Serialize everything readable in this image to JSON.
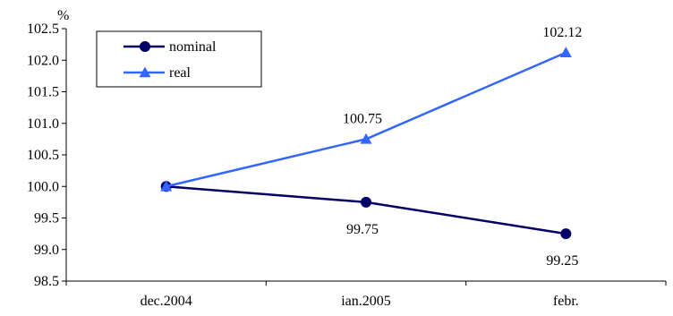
{
  "chart_data": {
    "type": "line",
    "unit_label": "%",
    "categories": [
      "dec.2004",
      "ian.2005",
      "febr."
    ],
    "ylim": [
      98.5,
      102.5
    ],
    "ytick_step": 0.5,
    "ytick_labels": [
      "98.5",
      "99.0",
      "99.5",
      "100.0",
      "100.5",
      "101.0",
      "101.5",
      "102.0",
      "102.5"
    ],
    "grid": false,
    "legend_position": "top-left",
    "series": [
      {
        "name": "nominal",
        "values": [
          100.0,
          99.75,
          99.25
        ],
        "data_labels": [
          "",
          "99.75",
          "99.25"
        ],
        "color": "#000066",
        "marker": "circle"
      },
      {
        "name": "real",
        "values": [
          100.0,
          100.75,
          102.12
        ],
        "data_labels": [
          "",
          "100.75",
          "102.12"
        ],
        "color": "#3366ff",
        "marker": "triangle"
      }
    ]
  }
}
